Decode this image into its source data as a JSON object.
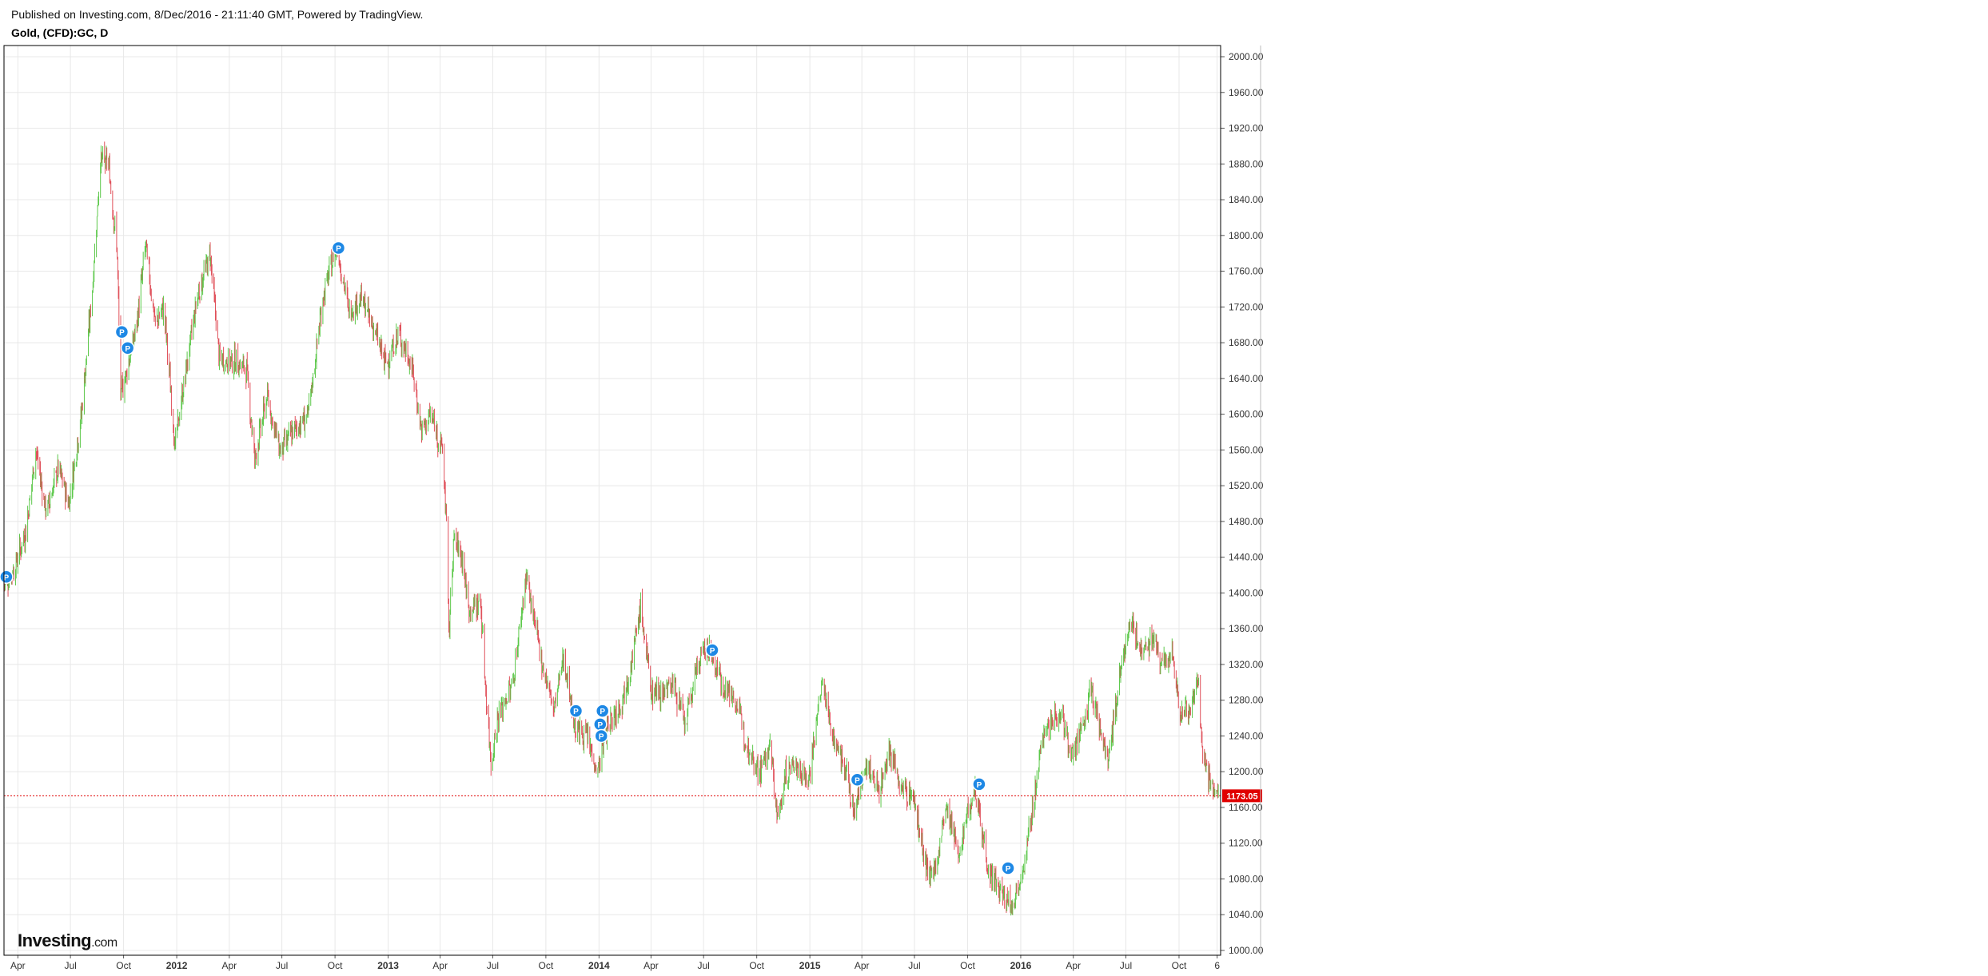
{
  "header": {
    "published": "Published on Investing.com, 8/Dec/2016 - 21:11:40 GMT, Powered by TradingView.",
    "symbol_title": "Gold, (CFD):GC, D"
  },
  "logo": {
    "name": "Investing",
    "suffix": ".com"
  },
  "colors": {
    "up": "#5cc84a",
    "down": "#e0505a",
    "grid": "#e8e8e8",
    "axis": "#000000",
    "price_line": "#e00000",
    "price_label_bg": "#e00000",
    "pin": "#1e88e5"
  },
  "chart_data": {
    "type": "candlestick",
    "title": "Gold, (CFD):GC, D",
    "x_range": [
      "2011-03-08",
      "2016-12-12"
    ],
    "ylim": [
      1000,
      2000
    ],
    "y_ticks": [
      1000,
      1040,
      1080,
      1120,
      1160,
      1200,
      1240,
      1280,
      1320,
      1360,
      1400,
      1440,
      1480,
      1520,
      1560,
      1600,
      1640,
      1680,
      1720,
      1760,
      1800,
      1840,
      1880,
      1920,
      1960,
      2000
    ],
    "y_tick_labels": [
      "1000.00",
      "1040.00",
      "1080.00",
      "1120.00",
      "1160.00",
      "1200.00",
      "1240.00",
      "1280.00",
      "1320.00",
      "1360.00",
      "1400.00",
      "1440.00",
      "1480.00",
      "1520.00",
      "1560.00",
      "1600.00",
      "1640.00",
      "1680.00",
      "1720.00",
      "1760.00",
      "1800.00",
      "1840.00",
      "1880.00",
      "1920.00",
      "1960.00",
      "2000.00"
    ],
    "x_ticks": [
      {
        "label": "Apr",
        "date": "2011-04-01"
      },
      {
        "label": "Jul",
        "date": "2011-07-01"
      },
      {
        "label": "Oct",
        "date": "2011-10-01"
      },
      {
        "label": "2012",
        "date": "2012-01-01",
        "year": true
      },
      {
        "label": "Apr",
        "date": "2012-04-01"
      },
      {
        "label": "Jul",
        "date": "2012-07-01"
      },
      {
        "label": "Oct",
        "date": "2012-10-01"
      },
      {
        "label": "2013",
        "date": "2013-01-01",
        "year": true
      },
      {
        "label": "Apr",
        "date": "2013-04-01"
      },
      {
        "label": "Jul",
        "date": "2013-07-01"
      },
      {
        "label": "Oct",
        "date": "2013-10-01"
      },
      {
        "label": "2014",
        "date": "2014-01-01",
        "year": true
      },
      {
        "label": "Apr",
        "date": "2014-04-01"
      },
      {
        "label": "Jul",
        "date": "2014-07-01"
      },
      {
        "label": "Oct",
        "date": "2014-10-01"
      },
      {
        "label": "2015",
        "date": "2015-01-01",
        "year": true
      },
      {
        "label": "Apr",
        "date": "2015-04-01"
      },
      {
        "label": "Jul",
        "date": "2015-07-01"
      },
      {
        "label": "Oct",
        "date": "2015-10-01"
      },
      {
        "label": "2016",
        "date": "2016-01-01",
        "year": true
      },
      {
        "label": "Apr",
        "date": "2016-04-01"
      },
      {
        "label": "Jul",
        "date": "2016-07-01"
      },
      {
        "label": "Oct",
        "date": "2016-10-01"
      },
      {
        "label": "6",
        "date": "2016-12-06"
      }
    ],
    "close_path": [
      [
        "2011-03-08",
        1410
      ],
      [
        "2011-03-25",
        1425
      ],
      [
        "2011-04-15",
        1470
      ],
      [
        "2011-05-02",
        1560
      ],
      [
        "2011-05-20",
        1490
      ],
      [
        "2011-06-10",
        1540
      ],
      [
        "2011-06-28",
        1500
      ],
      [
        "2011-07-20",
        1600
      ],
      [
        "2011-08-08",
        1740
      ],
      [
        "2011-08-22",
        1885
      ],
      [
        "2011-09-05",
        1880
      ],
      [
        "2011-09-20",
        1780
      ],
      [
        "2011-09-26",
        1620
      ],
      [
        "2011-10-10",
        1660
      ],
      [
        "2011-10-24",
        1700
      ],
      [
        "2011-11-08",
        1790
      ],
      [
        "2011-11-25",
        1700
      ],
      [
        "2011-12-10",
        1720
      ],
      [
        "2011-12-29",
        1565
      ],
      [
        "2012-01-15",
        1640
      ],
      [
        "2012-02-05",
        1730
      ],
      [
        "2012-02-28",
        1780
      ],
      [
        "2012-03-15",
        1660
      ],
      [
        "2012-04-10",
        1660
      ],
      [
        "2012-05-01",
        1650
      ],
      [
        "2012-05-15",
        1550
      ],
      [
        "2012-06-05",
        1620
      ],
      [
        "2012-06-28",
        1560
      ],
      [
        "2012-07-20",
        1580
      ],
      [
        "2012-08-16",
        1600
      ],
      [
        "2012-09-10",
        1730
      ],
      [
        "2012-10-04",
        1790
      ],
      [
        "2012-10-25",
        1715
      ],
      [
        "2012-11-15",
        1730
      ],
      [
        "2012-12-05",
        1700
      ],
      [
        "2012-12-28",
        1655
      ],
      [
        "2013-01-20",
        1690
      ],
      [
        "2013-02-12",
        1650
      ],
      [
        "2013-02-28",
        1580
      ],
      [
        "2013-03-15",
        1600
      ],
      [
        "2013-04-05",
        1560
      ],
      [
        "2013-04-12",
        1480
      ],
      [
        "2013-04-16",
        1350
      ],
      [
        "2013-04-24",
        1460
      ],
      [
        "2013-05-10",
        1440
      ],
      [
        "2013-05-20",
        1380
      ],
      [
        "2013-06-10",
        1390
      ],
      [
        "2013-06-20",
        1280
      ],
      [
        "2013-06-28",
        1210
      ],
      [
        "2013-07-10",
        1260
      ],
      [
        "2013-08-05",
        1300
      ],
      [
        "2013-08-28",
        1420
      ],
      [
        "2013-09-10",
        1370
      ],
      [
        "2013-09-25",
        1320
      ],
      [
        "2013-10-15",
        1270
      ],
      [
        "2013-11-01",
        1330
      ],
      [
        "2013-11-20",
        1250
      ],
      [
        "2013-12-10",
        1240
      ],
      [
        "2013-12-30",
        1200
      ],
      [
        "2014-01-15",
        1250
      ],
      [
        "2014-02-10",
        1280
      ],
      [
        "2014-03-01",
        1330
      ],
      [
        "2014-03-14",
        1385
      ],
      [
        "2014-04-01",
        1290
      ],
      [
        "2014-04-20",
        1290
      ],
      [
        "2014-05-10",
        1300
      ],
      [
        "2014-05-30",
        1250
      ],
      [
        "2014-06-20",
        1320
      ],
      [
        "2014-07-10",
        1340
      ],
      [
        "2014-08-01",
        1300
      ],
      [
        "2014-08-25",
        1280
      ],
      [
        "2014-09-15",
        1230
      ],
      [
        "2014-10-06",
        1200
      ],
      [
        "2014-10-25",
        1230
      ],
      [
        "2014-11-06",
        1145
      ],
      [
        "2014-11-20",
        1195
      ],
      [
        "2014-12-05",
        1210
      ],
      [
        "2014-12-30",
        1190
      ],
      [
        "2015-01-22",
        1300
      ],
      [
        "2015-02-10",
        1240
      ],
      [
        "2015-03-05",
        1200
      ],
      [
        "2015-03-18",
        1150
      ],
      [
        "2015-04-06",
        1210
      ],
      [
        "2015-05-01",
        1180
      ],
      [
        "2015-05-18",
        1225
      ],
      [
        "2015-06-10",
        1180
      ],
      [
        "2015-06-30",
        1170
      ],
      [
        "2015-07-24",
        1080
      ],
      [
        "2015-08-10",
        1100
      ],
      [
        "2015-08-24",
        1160
      ],
      [
        "2015-09-15",
        1110
      ],
      [
        "2015-10-14",
        1185
      ],
      [
        "2015-11-06",
        1090
      ],
      [
        "2015-11-30",
        1060
      ],
      [
        "2015-12-17",
        1050
      ],
      [
        "2016-01-08",
        1100
      ],
      [
        "2016-02-11",
        1250
      ],
      [
        "2016-03-11",
        1265
      ],
      [
        "2016-04-01",
        1215
      ],
      [
        "2016-04-20",
        1255
      ],
      [
        "2016-05-02",
        1295
      ],
      [
        "2016-05-30",
        1210
      ],
      [
        "2016-06-24",
        1320
      ],
      [
        "2016-07-06",
        1365
      ],
      [
        "2016-07-28",
        1340
      ],
      [
        "2016-08-20",
        1345
      ],
      [
        "2016-09-01",
        1315
      ],
      [
        "2016-09-20",
        1330
      ],
      [
        "2016-10-04",
        1265
      ],
      [
        "2016-10-20",
        1270
      ],
      [
        "2016-11-03",
        1305
      ],
      [
        "2016-11-10",
        1225
      ],
      [
        "2016-11-24",
        1185
      ],
      [
        "2016-12-08",
        1172
      ]
    ],
    "last_price": 1173.05,
    "last_price_label": "1173.05",
    "event_markers": [
      {
        "label": "P",
        "date": "2011-03-12",
        "price": 1418
      },
      {
        "label": "P",
        "date": "2011-09-28",
        "price": 1692
      },
      {
        "label": "P",
        "date": "2011-10-08",
        "price": 1674
      },
      {
        "label": "P",
        "date": "2012-10-07",
        "price": 1786
      },
      {
        "label": "P",
        "date": "2013-11-22",
        "price": 1268
      },
      {
        "label": "P",
        "date": "2014-01-03",
        "price": 1253
      },
      {
        "label": "P",
        "date": "2014-01-07",
        "price": 1268
      },
      {
        "label": "P",
        "date": "2014-01-05",
        "price": 1240
      },
      {
        "label": "P",
        "date": "2014-07-16",
        "price": 1336
      },
      {
        "label": "P",
        "date": "2015-03-24",
        "price": 1191
      },
      {
        "label": "P",
        "date": "2015-10-21",
        "price": 1186
      },
      {
        "label": "P",
        "date": "2015-12-10",
        "price": 1092
      }
    ]
  }
}
